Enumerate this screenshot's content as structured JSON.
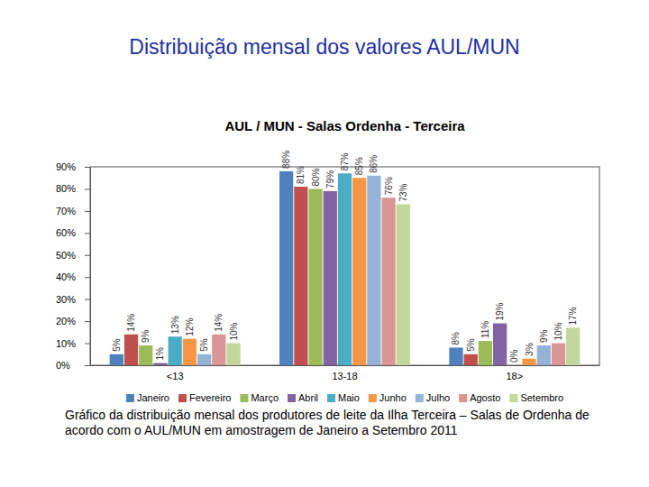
{
  "chart_data": {
    "type": "bar",
    "title": "Distribuição mensal dos valores AUL/MUN",
    "subtitle": "AUL / MUN - Salas Ordenha - Terceira",
    "annotations": [
      "Gráfico da distribuição mensal dos produtores de leite da Ilha Terceira – Salas de Ordenha de acordo com o AUL/MUN em amostragem de Janeiro a Setembro 2011"
    ],
    "categories": [
      "<13",
      "13-18",
      "18>"
    ],
    "series": [
      {
        "name": "Janeiro",
        "color": "#4f81bd",
        "values": [
          5,
          88,
          8
        ],
        "value_labels": [
          "5%",
          "88%",
          "8%"
        ]
      },
      {
        "name": "Fevereiro",
        "color": "#c0504d",
        "values": [
          14,
          81,
          5
        ],
        "value_labels": [
          "14%",
          "81%",
          "5%"
        ]
      },
      {
        "name": "Março",
        "color": "#9bbb59",
        "values": [
          9,
          80,
          11
        ],
        "value_labels": [
          "9%",
          "80%",
          "11%"
        ]
      },
      {
        "name": "Abril",
        "color": "#8064a2",
        "values": [
          1,
          79,
          19
        ],
        "value_labels": [
          "1%",
          "79%",
          "19%"
        ]
      },
      {
        "name": "Maio",
        "color": "#4bacc6",
        "values": [
          13,
          87,
          0
        ],
        "value_labels": [
          "13%",
          "87%",
          "0%"
        ]
      },
      {
        "name": "Junho",
        "color": "#f79646",
        "values": [
          12,
          85,
          3
        ],
        "value_labels": [
          "12%",
          "85%",
          "3%"
        ]
      },
      {
        "name": "Julho",
        "color": "#95b3d7",
        "values": [
          5,
          86,
          9
        ],
        "value_labels": [
          "5%",
          "86%",
          "9%"
        ]
      },
      {
        "name": "Agosto",
        "color": "#d99694",
        "values": [
          14,
          76,
          10
        ],
        "value_labels": [
          "14%",
          "76%",
          "10%"
        ]
      },
      {
        "name": "Setembro",
        "color": "#c3d69b",
        "values": [
          10,
          73,
          17
        ],
        "value_labels": [
          "10%",
          "73%",
          "17%"
        ]
      }
    ],
    "ylim": [
      0,
      90
    ],
    "yticks": [
      {
        "value": 0,
        "label": "0%"
      },
      {
        "value": 10,
        "label": "10%"
      },
      {
        "value": 20,
        "label": "20%"
      },
      {
        "value": 30,
        "label": "30%"
      },
      {
        "value": 40,
        "label": "40%"
      },
      {
        "value": 50,
        "label": "50%"
      },
      {
        "value": 60,
        "label": "60%"
      },
      {
        "value": 70,
        "label": "70%"
      },
      {
        "value": 80,
        "label": "80%"
      },
      {
        "value": 90,
        "label": "90%"
      }
    ],
    "grid": false,
    "data_labels": true,
    "legend": "bottom"
  }
}
